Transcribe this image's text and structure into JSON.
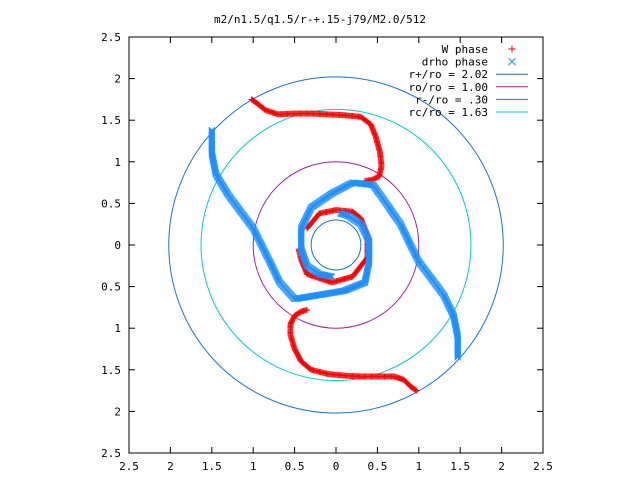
{
  "chart_data": {
    "type": "scatter",
    "title": "m2/n1.5/q1.5/r-+.15-j79/M2.0/512",
    "xlabel": "",
    "ylabel": "",
    "xlim": [
      -2.5,
      2.5
    ],
    "ylim": [
      -2.5,
      2.5
    ],
    "x_tick_values": [
      -2.5,
      -2,
      -1.5,
      -1,
      -0.5,
      0,
      0.5,
      1,
      1.5,
      2,
      2.5
    ],
    "x_tick_labels": [
      "2.5",
      "2",
      "1.5",
      "1",
      "0.5",
      "0",
      "0.5",
      "1",
      "1.5",
      "2",
      "2.5"
    ],
    "y_tick_values": [
      2.5,
      2,
      1.5,
      1,
      0.5,
      0,
      -0.5,
      -1,
      -1.5,
      -2,
      -2.5
    ],
    "y_tick_labels": [
      "2.5",
      "2",
      "1.5",
      "1",
      "0.5",
      "0",
      "0.5",
      "1",
      "1.5",
      "2",
      "2.5"
    ],
    "grid": false,
    "legend_position": "top-right",
    "legend": [
      {
        "label": "W phase",
        "marker": "plus",
        "color": "#ff0000"
      },
      {
        "label": "drho phase",
        "marker": "cross",
        "color": "#1e90ff"
      },
      {
        "label": "r+/ro = 2.02",
        "marker": "line",
        "color": "#1874cd"
      },
      {
        "label": "ro/ro = 1.00",
        "marker": "line",
        "color": "#a020a0"
      },
      {
        "label": "r-/ro = .30",
        "marker": "line",
        "color": "#1874cd"
      },
      {
        "label": "rc/ro = 1.63",
        "marker": "line",
        "color": "#00cccc"
      }
    ],
    "circles": [
      {
        "name": "r+/ro = 2.02",
        "radius": 2.02,
        "color": "#1874cd"
      },
      {
        "name": "ro/ro = 1.00",
        "radius": 1.0,
        "color": "#a020a0"
      },
      {
        "name": "r-/ro = .30",
        "radius": 0.3,
        "color": "#1874cd"
      },
      {
        "name": "rc/ro = 1.63",
        "radius": 1.63,
        "color": "#00cccc"
      }
    ],
    "series": [
      {
        "name": "W phase",
        "color": "#ff0000",
        "marker": "plus",
        "segments": [
          [
            [
              -1.02,
              1.75
            ],
            [
              -0.95,
              1.7
            ],
            [
              -0.85,
              1.62
            ],
            [
              -0.7,
              1.57
            ],
            [
              -0.5,
              1.58
            ],
            [
              -0.3,
              1.58
            ],
            [
              -0.1,
              1.57
            ],
            [
              0.1,
              1.56
            ],
            [
              0.3,
              1.54
            ],
            [
              0.42,
              1.45
            ],
            [
              0.48,
              1.3
            ],
            [
              0.53,
              1.12
            ],
            [
              0.55,
              0.95
            ],
            [
              0.52,
              0.82
            ],
            [
              0.42,
              0.78
            ],
            [
              0.35,
              0.77
            ]
          ],
          [
            [
              0.97,
              -1.75
            ],
            [
              0.9,
              -1.7
            ],
            [
              0.82,
              -1.62
            ],
            [
              0.7,
              -1.58
            ],
            [
              0.5,
              -1.58
            ],
            [
              0.3,
              -1.58
            ],
            [
              0.1,
              -1.57
            ],
            [
              -0.1,
              -1.55
            ],
            [
              -0.3,
              -1.5
            ],
            [
              -0.42,
              -1.4
            ],
            [
              -0.5,
              -1.25
            ],
            [
              -0.55,
              -1.08
            ],
            [
              -0.55,
              -0.95
            ],
            [
              -0.5,
              -0.85
            ],
            [
              -0.42,
              -0.8
            ],
            [
              -0.35,
              -0.78
            ]
          ],
          [
            [
              -0.45,
              -0.05
            ],
            [
              -0.42,
              -0.18
            ],
            [
              -0.35,
              -0.35
            ],
            [
              -0.05,
              -0.45
            ],
            [
              0.2,
              -0.38
            ],
            [
              0.38,
              -0.15
            ],
            [
              0.38,
              0.12
            ],
            [
              0.3,
              0.32
            ],
            [
              0.2,
              0.4
            ],
            [
              0.0,
              0.42
            ],
            [
              -0.2,
              0.38
            ],
            [
              -0.35,
              0.2
            ]
          ]
        ]
      },
      {
        "name": "drho phase",
        "color": "#1e90ff",
        "marker": "cross",
        "segments": [
          [
            [
              -1.5,
              1.38
            ],
            [
              -1.5,
              1.1
            ],
            [
              -1.45,
              0.85
            ],
            [
              -1.3,
              0.6
            ],
            [
              -1.15,
              0.4
            ],
            [
              -1.0,
              0.2
            ],
            [
              -0.9,
              0.0
            ],
            [
              -0.8,
              -0.2
            ],
            [
              -0.68,
              -0.45
            ],
            [
              -0.5,
              -0.65
            ],
            [
              -0.2,
              -0.6
            ],
            [
              0.1,
              -0.55
            ],
            [
              0.35,
              -0.45
            ],
            [
              0.4,
              -0.2
            ],
            [
              0.4,
              0.05
            ],
            [
              0.3,
              0.25
            ],
            [
              0.15,
              0.35
            ],
            [
              0.05,
              0.38
            ]
          ],
          [
            [
              1.47,
              -1.35
            ],
            [
              1.47,
              -1.1
            ],
            [
              1.42,
              -0.85
            ],
            [
              1.3,
              -0.6
            ],
            [
              1.15,
              -0.4
            ],
            [
              1.0,
              -0.2
            ],
            [
              0.9,
              0.0
            ],
            [
              0.78,
              0.25
            ],
            [
              0.62,
              0.48
            ],
            [
              0.45,
              0.72
            ],
            [
              0.2,
              0.75
            ],
            [
              -0.05,
              0.62
            ],
            [
              -0.3,
              0.45
            ],
            [
              -0.42,
              0.2
            ],
            [
              -0.42,
              -0.05
            ],
            [
              -0.35,
              -0.25
            ],
            [
              -0.2,
              -0.35
            ],
            [
              -0.05,
              -0.38
            ]
          ]
        ]
      }
    ]
  }
}
